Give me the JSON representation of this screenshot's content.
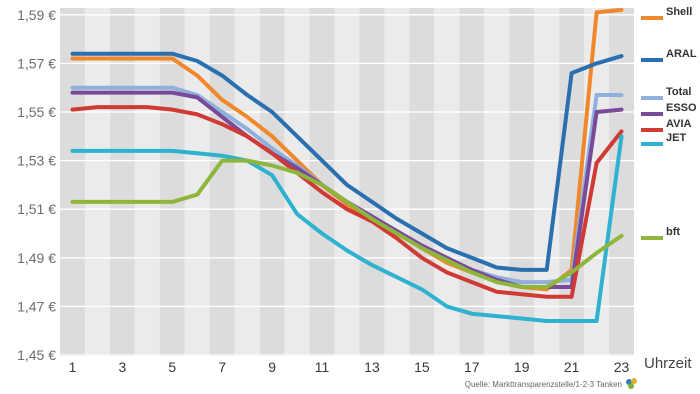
{
  "chart_data": {
    "type": "line",
    "x": [
      1,
      2,
      3,
      4,
      5,
      6,
      7,
      8,
      9,
      10,
      11,
      12,
      13,
      14,
      15,
      16,
      17,
      18,
      19,
      20,
      21,
      22,
      23
    ],
    "x_ticks": [
      1,
      3,
      5,
      7,
      9,
      11,
      13,
      15,
      17,
      19,
      21,
      23
    ],
    "xlabel": "Uhrzeit",
    "y_ticks": [
      "1,45 €",
      "1,47 €",
      "1,49 €",
      "1,51 €",
      "1,53 €",
      "1,55 €",
      "1,57 €",
      "1,59 €"
    ],
    "ylim": [
      1.45,
      1.595
    ],
    "grid": "alternating vertical bands, horizontal gridlines",
    "legend": "right",
    "series": [
      {
        "name": "Shell",
        "color": "#f0882a",
        "values": [
          1.572,
          1.572,
          1.572,
          1.572,
          1.572,
          1.565,
          1.555,
          1.548,
          1.54,
          1.53,
          1.52,
          1.512,
          1.506,
          1.5,
          1.494,
          1.488,
          1.484,
          1.481,
          1.478,
          1.477,
          1.485,
          1.591,
          1.592
        ]
      },
      {
        "name": "ARAL",
        "color": "#2a6fb0",
        "values": [
          1.574,
          1.574,
          1.574,
          1.574,
          1.574,
          1.571,
          1.565,
          1.557,
          1.55,
          1.54,
          1.53,
          1.52,
          1.513,
          1.506,
          1.5,
          1.494,
          1.49,
          1.486,
          1.485,
          1.485,
          1.566,
          1.57,
          1.573
        ]
      },
      {
        "name": "Total",
        "color": "#8fb0dc",
        "values": [
          1.56,
          1.56,
          1.56,
          1.56,
          1.56,
          1.557,
          1.55,
          1.543,
          1.535,
          1.528,
          1.52,
          1.513,
          1.507,
          1.501,
          1.495,
          1.49,
          1.485,
          1.482,
          1.48,
          1.48,
          1.481,
          1.557,
          1.557
        ]
      },
      {
        "name": "ESSO",
        "color": "#7a4a9a",
        "values": [
          1.558,
          1.558,
          1.558,
          1.558,
          1.558,
          1.556,
          1.548,
          1.54,
          1.533,
          1.527,
          1.52,
          1.513,
          1.507,
          1.501,
          1.495,
          1.49,
          1.485,
          1.481,
          1.478,
          1.478,
          1.478,
          1.55,
          1.551
        ]
      },
      {
        "name": "AVIA",
        "color": "#cf3a35",
        "values": [
          1.551,
          1.552,
          1.552,
          1.552,
          1.551,
          1.549,
          1.545,
          1.54,
          1.533,
          1.525,
          1.517,
          1.51,
          1.505,
          1.498,
          1.49,
          1.484,
          1.48,
          1.476,
          1.475,
          1.474,
          1.474,
          1.529,
          1.542
        ]
      },
      {
        "name": "JET",
        "color": "#2eb2cf",
        "values": [
          1.534,
          1.534,
          1.534,
          1.534,
          1.534,
          1.533,
          1.532,
          1.53,
          1.524,
          1.508,
          1.5,
          1.493,
          1.487,
          1.482,
          1.477,
          1.47,
          1.467,
          1.466,
          1.465,
          1.464,
          1.464,
          1.464,
          1.54
        ]
      },
      {
        "name": "bft",
        "color": "#8db63b",
        "values": [
          1.513,
          1.513,
          1.513,
          1.513,
          1.513,
          1.516,
          1.53,
          1.53,
          1.528,
          1.525,
          1.52,
          1.513,
          1.506,
          1.5,
          1.494,
          1.489,
          1.484,
          1.48,
          1.478,
          1.478,
          1.484,
          1.492,
          1.499
        ]
      }
    ]
  },
  "source": "Quelle: Markttransparenzstelle/1-2-3 Tanken"
}
